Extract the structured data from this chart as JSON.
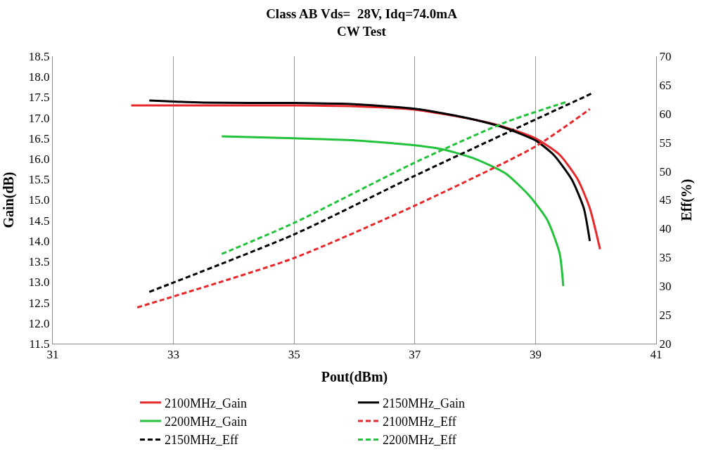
{
  "chart_data": {
    "type": "line",
    "title": "Class AB Vds=  28V, Idq=74.0mA",
    "subtitle": "CW Test",
    "xlabel": "Pout(dBm)",
    "ylabel": "Gain(dB)",
    "y2label": "Eff(%)",
    "xlim": [
      31,
      41
    ],
    "xticks": [
      31,
      33,
      35,
      37,
      39,
      41
    ],
    "ylim": [
      11.5,
      18.5
    ],
    "yticks": [
      {
        "value": 11.5,
        "label": "11.5"
      },
      {
        "value": 12,
        "label": "12.0"
      },
      {
        "value": 12.5,
        "label": "12.5"
      },
      {
        "value": 13,
        "label": "13.0"
      },
      {
        "value": 13.5,
        "label": "13.5"
      },
      {
        "value": 14,
        "label": "14.0"
      },
      {
        "value": 14.5,
        "label": "14.5"
      },
      {
        "value": 15,
        "label": "15.0"
      },
      {
        "value": 15.5,
        "label": "15.5"
      },
      {
        "value": 16,
        "label": "16.0"
      },
      {
        "value": 16.5,
        "label": "16.5"
      },
      {
        "value": 17,
        "label": "17.0"
      },
      {
        "value": 17.5,
        "label": "17.5"
      },
      {
        "value": 18,
        "label": "18.0"
      },
      {
        "value": 18.5,
        "label": "18.5"
      }
    ],
    "y2lim": [
      20,
      70
    ],
    "y2ticks": [
      20,
      25,
      30,
      35,
      40,
      45,
      50,
      55,
      60,
      65,
      70
    ],
    "grid": "x",
    "legend": "bottom",
    "marker": "none",
    "series": [
      {
        "name": "2100MHz_Gain",
        "color": "#e8272b",
        "line_style": "solid",
        "x": [
          32.3,
          35,
          36,
          37,
          38,
          38.5,
          39,
          39.4,
          39.7,
          39.9,
          40.07
        ],
        "values": [
          17.3,
          17.3,
          17.28,
          17.2,
          16.95,
          16.77,
          16.5,
          16.1,
          15.5,
          14.8,
          13.8
        ]
      },
      {
        "name": "2150MHz_Gain",
        "color": "#000000",
        "line_style": "solid",
        "x": [
          32.6,
          33.5,
          35,
          36,
          37,
          37.5,
          38,
          38.5,
          39,
          39.3,
          39.6,
          39.8,
          39.9
        ],
        "values": [
          17.42,
          17.37,
          17.36,
          17.33,
          17.22,
          17.1,
          16.95,
          16.75,
          16.45,
          16.1,
          15.5,
          14.8,
          14.0
        ]
      },
      {
        "name": "2200MHz_Gain",
        "color": "#22c33a",
        "line_style": "solid",
        "x": [
          33.8,
          35,
          36,
          37,
          37.5,
          38,
          38.5,
          38.9,
          39.2,
          39.4,
          39.46
        ],
        "values": [
          16.55,
          16.5,
          16.45,
          16.33,
          16.22,
          16.0,
          15.65,
          15.1,
          14.5,
          13.7,
          12.9
        ]
      },
      {
        "name": "2100MHz_Eff",
        "color": "#e8272b",
        "line_style": "dashed",
        "axis": "y2",
        "x": [
          32.4,
          35,
          37,
          39,
          39.9
        ],
        "values": [
          26.3,
          34.9,
          44,
          54.3,
          60.8
        ]
      },
      {
        "name": "2150MHz_Eff",
        "color": "#000000",
        "line_style": "dashed",
        "axis": "y2",
        "x": [
          32.6,
          35,
          37,
          39,
          39.95
        ],
        "values": [
          29,
          39,
          49.2,
          59,
          63.6
        ]
      },
      {
        "name": "2200MHz_Eff",
        "color": "#22c33a",
        "line_style": "dashed",
        "axis": "y2",
        "x": [
          33.8,
          35,
          37,
          38.5,
          39.5
        ],
        "values": [
          35.6,
          41,
          51.5,
          58.5,
          62
        ]
      }
    ]
  }
}
